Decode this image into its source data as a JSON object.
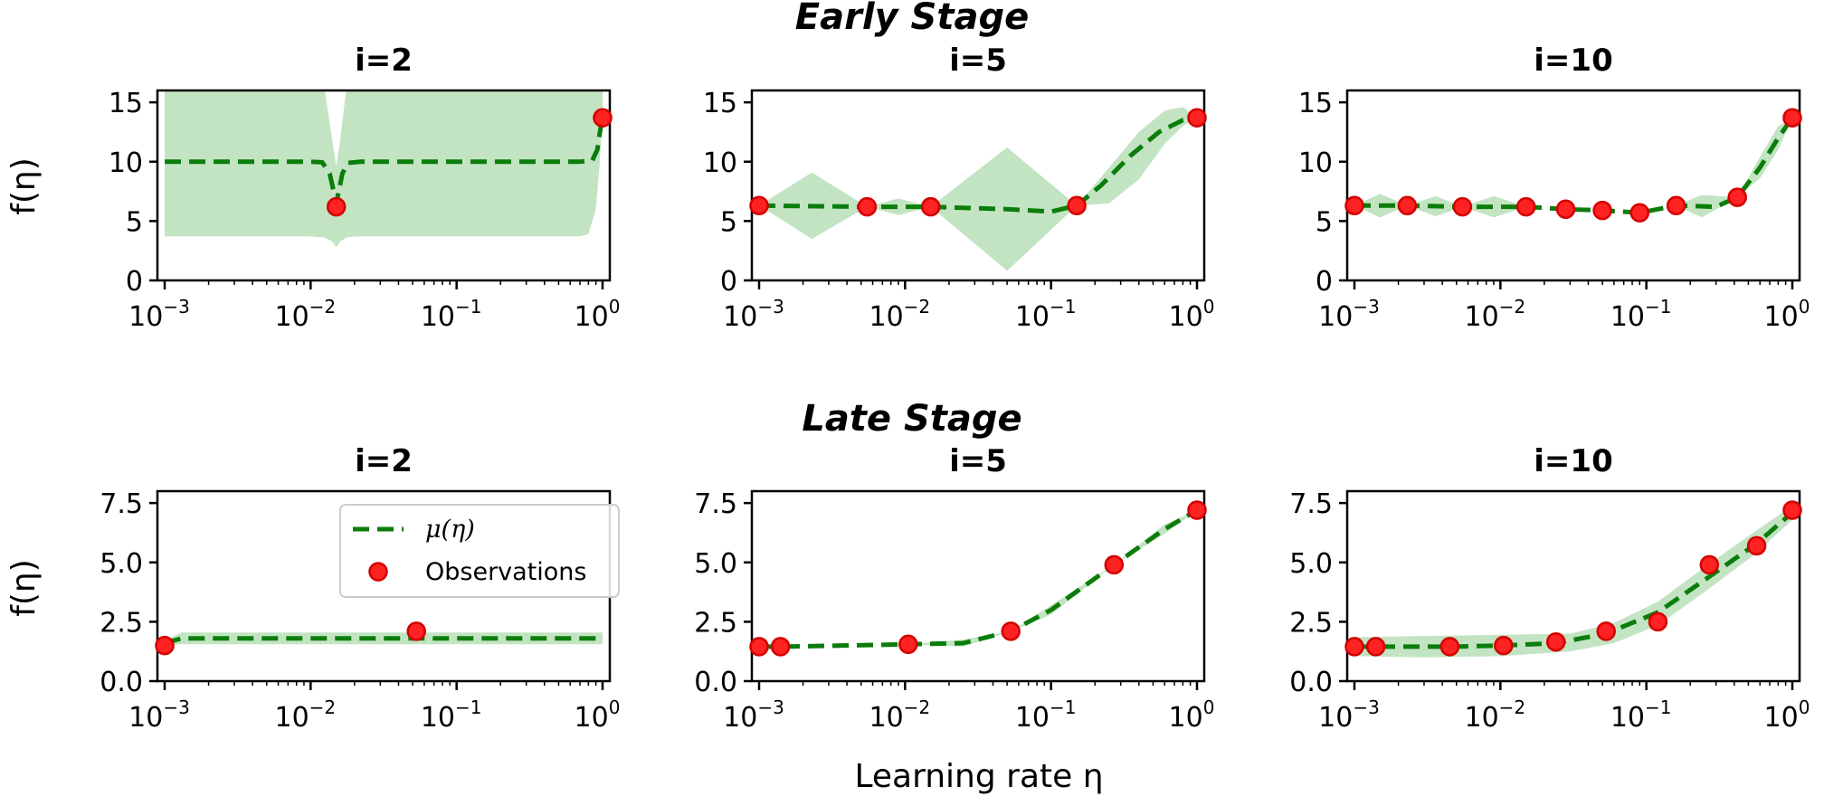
{
  "figure": {
    "stages": [
      {
        "key": "early",
        "title": "Early Stage"
      },
      {
        "key": "late",
        "title": "Late Stage"
      }
    ],
    "ylabel": "f(η)",
    "xlabel": "Learning rate η"
  },
  "colors": {
    "mean": "#0a7d0a",
    "band": "#a9d9a9",
    "obs_fill": "#ff2222",
    "obs_edge": "#d40000",
    "legend_edge": "#cccccc"
  },
  "legend": {
    "mean_label": "μ(η)",
    "obs_label": "Observations",
    "placement": "upper-center of Late Stage i=2 panel"
  },
  "chart_data": [
    {
      "type": "line",
      "stage": "Early Stage",
      "title": "i=2",
      "xscale": "log",
      "xlim": [
        0.001,
        1
      ],
      "ylim": [
        0,
        16
      ],
      "yticks": [
        "0",
        "5",
        "10",
        "15"
      ],
      "xticks": [
        "10^-3",
        "10^-2",
        "10^-1",
        "10^0"
      ],
      "ylabel": "f(η)",
      "observations": {
        "x": [
          0.015,
          1.0
        ],
        "y": [
          6.2,
          13.7
        ]
      },
      "mean": {
        "x": [
          0.001,
          0.005,
          0.01,
          0.012,
          0.0135,
          0.015,
          0.0165,
          0.018,
          0.022,
          0.05,
          0.1,
          0.3,
          0.7,
          0.85,
          0.92,
          0.96,
          1.0
        ],
        "y": [
          10.0,
          10.0,
          10.0,
          9.95,
          9.0,
          6.5,
          9.0,
          9.9,
          10.0,
          10.0,
          10.0,
          10.0,
          10.0,
          10.1,
          11.0,
          12.5,
          13.7
        ]
      },
      "band": {
        "x": [
          0.001,
          0.01,
          0.0125,
          0.014,
          0.015,
          0.016,
          0.0175,
          0.02,
          0.1,
          0.7,
          0.8,
          0.9,
          0.95,
          1.0
        ],
        "lower": [
          3.7,
          3.7,
          3.6,
          3.3,
          2.8,
          3.3,
          3.6,
          3.7,
          3.7,
          3.7,
          3.9,
          6.0,
          9.5,
          13.7
        ],
        "upper": [
          16.3,
          16.3,
          16.0,
          12.0,
          9.6,
          12.0,
          16.0,
          16.3,
          16.3,
          16.3,
          16.3,
          16.3,
          16.3,
          16.3
        ]
      }
    },
    {
      "type": "line",
      "stage": "Early Stage",
      "title": "i=5",
      "xscale": "log",
      "xlim": [
        0.001,
        1
      ],
      "ylim": [
        0,
        16
      ],
      "yticks": [
        "0",
        "5",
        "10",
        "15"
      ],
      "xticks": [
        "10^-3",
        "10^-2",
        "10^-1",
        "10^0"
      ],
      "observations": {
        "x": [
          0.001,
          0.0055,
          0.015,
          0.15,
          1.0
        ],
        "y": [
          6.3,
          6.2,
          6.2,
          6.3,
          13.7
        ]
      },
      "mean": {
        "x": [
          0.001,
          0.0055,
          0.015,
          0.05,
          0.1,
          0.15,
          0.22,
          0.35,
          0.55,
          0.8,
          1.0
        ],
        "y": [
          6.3,
          6.2,
          6.2,
          6.0,
          5.8,
          6.3,
          8.0,
          10.5,
          12.5,
          13.5,
          13.7
        ]
      },
      "band": {
        "x": [
          0.001,
          0.0023,
          0.0055,
          0.009,
          0.015,
          0.05,
          0.15,
          0.25,
          0.4,
          0.6,
          0.8,
          1.0
        ],
        "lower": [
          6.3,
          3.5,
          6.2,
          5.5,
          6.2,
          0.8,
          6.3,
          6.5,
          8.5,
          11.5,
          13.0,
          13.7
        ],
        "upper": [
          6.3,
          9.1,
          6.2,
          6.9,
          6.2,
          11.2,
          6.3,
          9.5,
          12.5,
          14.3,
          14.6,
          13.7
        ]
      }
    },
    {
      "type": "line",
      "stage": "Early Stage",
      "title": "i=10",
      "xscale": "log",
      "xlim": [
        0.001,
        1
      ],
      "ylim": [
        0,
        16
      ],
      "yticks": [
        "0",
        "5",
        "10",
        "15"
      ],
      "xticks": [
        "10^-3",
        "10^-2",
        "10^-1",
        "10^0"
      ],
      "observations": {
        "x": [
          0.001,
          0.0023,
          0.0055,
          0.015,
          0.028,
          0.05,
          0.09,
          0.16,
          0.42,
          1.0
        ],
        "y": [
          6.3,
          6.3,
          6.2,
          6.2,
          6.0,
          5.9,
          5.7,
          6.3,
          7.0,
          13.7
        ]
      },
      "mean": {
        "x": [
          0.001,
          0.0023,
          0.0055,
          0.015,
          0.028,
          0.05,
          0.09,
          0.16,
          0.3,
          0.42,
          0.6,
          0.8,
          1.0
        ],
        "y": [
          6.3,
          6.3,
          6.2,
          6.2,
          6.0,
          5.9,
          5.7,
          6.3,
          6.2,
          7.0,
          9.5,
          12.0,
          13.7
        ]
      },
      "band": {
        "x": [
          0.001,
          0.0015,
          0.0023,
          0.0036,
          0.0055,
          0.009,
          0.015,
          0.028,
          0.05,
          0.09,
          0.16,
          0.24,
          0.42,
          0.6,
          0.8,
          1.0
        ],
        "lower": [
          6.3,
          5.3,
          6.3,
          5.4,
          6.2,
          5.3,
          6.2,
          6.0,
          5.9,
          5.7,
          6.3,
          5.3,
          7.0,
          8.6,
          11.0,
          13.7
        ],
        "upper": [
          6.3,
          7.3,
          6.3,
          7.1,
          6.2,
          7.1,
          6.2,
          6.0,
          5.9,
          5.7,
          6.3,
          7.2,
          7.0,
          10.4,
          13.0,
          13.7
        ]
      }
    },
    {
      "type": "line",
      "stage": "Late Stage",
      "title": "i=2",
      "xscale": "log",
      "xlim": [
        0.001,
        1
      ],
      "ylim": [
        0,
        8
      ],
      "yticks": [
        "0.0",
        "2.5",
        "5.0",
        "7.5"
      ],
      "xticks": [
        "10^-3",
        "10^-2",
        "10^-1",
        "10^0"
      ],
      "ylabel": "f(η)",
      "observations": {
        "x": [
          0.001,
          0.053
        ],
        "y": [
          1.5,
          2.1
        ]
      },
      "mean": {
        "x": [
          0.001,
          0.0013,
          0.01,
          0.1,
          1.0
        ],
        "y": [
          1.6,
          1.8,
          1.8,
          1.8,
          1.8
        ]
      },
      "band": {
        "x": [
          0.001,
          0.0013,
          0.01,
          0.1,
          1.0
        ],
        "lower": [
          1.5,
          1.55,
          1.55,
          1.55,
          1.55
        ],
        "upper": [
          1.7,
          2.05,
          2.05,
          2.05,
          2.05
        ]
      }
    },
    {
      "type": "line",
      "stage": "Late Stage",
      "title": "i=5",
      "xscale": "log",
      "xlim": [
        0.001,
        1
      ],
      "ylim": [
        0,
        8
      ],
      "yticks": [
        "0.0",
        "2.5",
        "5.0",
        "7.5"
      ],
      "xticks": [
        "10^-3",
        "10^-2",
        "10^-1",
        "10^0"
      ],
      "observations": {
        "x": [
          0.001,
          0.0014,
          0.0105,
          0.053,
          0.27,
          1.0
        ],
        "y": [
          1.45,
          1.45,
          1.55,
          2.1,
          4.9,
          7.2
        ]
      },
      "mean": {
        "x": [
          0.001,
          0.0014,
          0.0105,
          0.025,
          0.053,
          0.1,
          0.27,
          0.6,
          1.0
        ],
        "y": [
          1.45,
          1.45,
          1.55,
          1.6,
          2.1,
          3.0,
          4.9,
          6.4,
          7.2
        ]
      },
      "band": {
        "x": [
          0.001,
          0.0014,
          0.0105,
          0.025,
          0.053,
          0.1,
          0.27,
          0.6,
          1.0
        ],
        "lower": [
          1.45,
          1.45,
          1.55,
          1.45,
          2.1,
          2.8,
          4.9,
          6.2,
          7.2
        ],
        "upper": [
          1.45,
          1.45,
          1.55,
          1.75,
          2.1,
          3.2,
          4.9,
          6.6,
          7.2
        ]
      }
    },
    {
      "type": "line",
      "stage": "Late Stage",
      "title": "i=10",
      "xscale": "log",
      "xlim": [
        0.001,
        1
      ],
      "ylim": [
        0,
        8
      ],
      "yticks": [
        "0.0",
        "2.5",
        "5.0",
        "7.5"
      ],
      "xticks": [
        "10^-3",
        "10^-2",
        "10^-1",
        "10^0"
      ],
      "observations": {
        "x": [
          0.001,
          0.0014,
          0.0045,
          0.0105,
          0.024,
          0.053,
          0.12,
          0.27,
          0.57,
          1.0
        ],
        "y": [
          1.45,
          1.45,
          1.45,
          1.5,
          1.65,
          2.1,
          2.5,
          4.9,
          5.7,
          7.2
        ]
      },
      "mean": {
        "x": [
          0.001,
          0.0014,
          0.0045,
          0.0105,
          0.024,
          0.053,
          0.12,
          0.27,
          0.57,
          1.0
        ],
        "y": [
          1.45,
          1.45,
          1.45,
          1.5,
          1.6,
          2.0,
          2.9,
          4.4,
          5.8,
          7.1
        ]
      },
      "band": {
        "x": [
          0.001,
          0.003,
          0.01,
          0.03,
          0.06,
          0.12,
          0.27,
          0.57,
          1.0
        ],
        "lower": [
          1.05,
          1.0,
          1.05,
          1.25,
          1.6,
          2.35,
          3.9,
          5.4,
          6.8
        ],
        "upper": [
          1.85,
          1.9,
          1.95,
          2.0,
          2.45,
          3.35,
          4.95,
          6.35,
          7.4
        ]
      }
    }
  ]
}
